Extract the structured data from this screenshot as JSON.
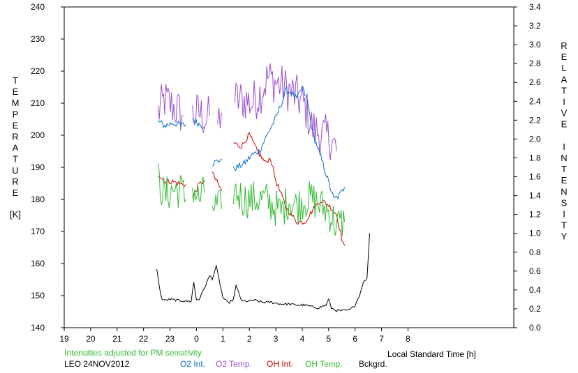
{
  "chart_data": {
    "type": "line",
    "ylabel_left": "TEMPERATURE",
    "ylabel_left_unit": "[K]",
    "ylabel_right": "RELATIVE INTENSITY",
    "xlabel": "Local Standard Time [h]",
    "note": "Intensities adjusted for PM sensitivity",
    "station": "LEO 24NOV2012",
    "x_hours_after_19": [
      0,
      17
    ],
    "x_tick_labels": [
      "19",
      "20",
      "21",
      "22",
      "23",
      "0",
      "1",
      "2",
      "3",
      "4",
      "5",
      "6",
      "7",
      "8"
    ],
    "ylim_left": [
      140,
      240
    ],
    "y_left_ticks": [
      "140",
      "150",
      "160",
      "170",
      "180",
      "190",
      "200",
      "210",
      "220",
      "230",
      "240"
    ],
    "ylim_right": [
      0.0,
      3.4
    ],
    "y_right_ticks": [
      "0.0",
      "0.2",
      "0.4",
      "0.6",
      "0.8",
      "1.0",
      "1.2",
      "1.4",
      "1.6",
      "1.8",
      "2.0",
      "2.2",
      "2.4",
      "2.6",
      "2.8",
      "3.0",
      "3.2",
      "3.4"
    ],
    "legend": [
      {
        "name": "O2 Int.",
        "color": "#0070d0"
      },
      {
        "name": "O2 Temp.",
        "color": "#9b4fd0"
      },
      {
        "name": "OH Int.",
        "color": "#d00000"
      },
      {
        "name": "OH Temp.",
        "color": "#33bb33"
      },
      {
        "name": "Bckgrd.",
        "color": "#000000"
      }
    ],
    "series": [
      {
        "name": "O2 Temp.",
        "axis": "left",
        "color": "#9b4fd0",
        "noise": 7,
        "segments": [
          [
            [
              3.55,
              207
            ],
            [
              3.8,
              211
            ],
            [
              4.1,
              209
            ],
            [
              4.4,
              207
            ],
            [
              4.5,
              206
            ]
          ],
          [
            [
              4.85,
              206
            ],
            [
              5.1,
              207
            ],
            [
              5.35,
              205
            ],
            [
              5.5,
              206
            ]
          ],
          [
            [
              5.8,
              204
            ],
            [
              5.95,
              207
            ]
          ],
          [
            [
              6.45,
              211
            ],
            [
              6.85,
              211
            ],
            [
              7.1,
              210
            ],
            [
              7.4,
              213
            ],
            [
              7.7,
              218
            ],
            [
              8.1,
              216
            ],
            [
              8.5,
              214
            ],
            [
              8.8,
              212
            ],
            [
              9.1,
              209
            ],
            [
              9.4,
              202
            ],
            [
              9.8,
              200
            ],
            [
              10.1,
              199
            ],
            [
              10.3,
              195
            ]
          ]
        ]
      },
      {
        "name": "O2 Int.",
        "axis": "right",
        "color": "#0070d0",
        "noise": 0.035,
        "segments": [
          [
            [
              3.55,
              2.19
            ],
            [
              3.8,
              2.14
            ],
            [
              4.1,
              2.17
            ],
            [
              4.4,
              2.15
            ],
            [
              4.6,
              2.15
            ]
          ],
          [
            [
              4.85,
              2.22
            ],
            [
              5.1,
              2.16
            ],
            [
              5.3,
              2.13
            ]
          ],
          [
            [
              5.6,
              1.74
            ],
            [
              5.95,
              1.79
            ]
          ],
          [
            [
              6.4,
              1.68
            ],
            [
              6.8,
              1.74
            ],
            [
              7.1,
              1.83
            ],
            [
              7.4,
              1.88
            ],
            [
              7.7,
              2.06
            ],
            [
              8.0,
              2.22
            ],
            [
              8.4,
              2.52
            ],
            [
              8.6,
              2.49
            ],
            [
              8.8,
              2.42
            ],
            [
              9.0,
              2.55
            ],
            [
              9.2,
              2.4
            ],
            [
              9.4,
              2.06
            ],
            [
              9.7,
              1.81
            ],
            [
              10.0,
              1.54
            ],
            [
              10.2,
              1.36
            ],
            [
              10.4,
              1.4
            ],
            [
              10.6,
              1.49
            ]
          ]
        ]
      },
      {
        "name": "OH Int.",
        "axis": "right",
        "color": "#d00000",
        "noise": 0.028,
        "segments": [
          [
            [
              3.55,
              1.63
            ],
            [
              3.8,
              1.55
            ],
            [
              4.1,
              1.55
            ],
            [
              4.4,
              1.52
            ],
            [
              4.6,
              1.52
            ]
          ],
          [
            [
              4.85,
              1.38
            ],
            [
              5.1,
              1.52
            ],
            [
              5.3,
              1.56
            ]
          ],
          [
            [
              5.6,
              1.64
            ],
            [
              5.95,
              1.45
            ]
          ],
          [
            [
              6.4,
              1.96
            ],
            [
              6.7,
              1.92
            ],
            [
              7.0,
              2.05
            ],
            [
              7.3,
              1.87
            ],
            [
              7.6,
              1.75
            ],
            [
              7.8,
              1.8
            ],
            [
              8.0,
              1.56
            ],
            [
              8.4,
              1.27
            ],
            [
              8.8,
              1.12
            ],
            [
              9.1,
              1.12
            ],
            [
              9.4,
              1.25
            ],
            [
              9.7,
              1.35
            ],
            [
              10.0,
              1.3
            ],
            [
              10.3,
              1.2
            ],
            [
              10.5,
              0.94
            ],
            [
              10.6,
              0.87
            ]
          ]
        ]
      },
      {
        "name": "OH Temp.",
        "axis": "left",
        "color": "#33bb33",
        "noise": 6,
        "segments": [
          [
            [
              3.55,
              186
            ],
            [
              3.8,
              181
            ],
            [
              4.1,
              183
            ],
            [
              4.4,
              183
            ],
            [
              4.6,
              180
            ]
          ],
          [
            [
              4.85,
              184
            ],
            [
              5.1,
              180
            ],
            [
              5.3,
              182
            ]
          ],
          [
            [
              5.6,
              178
            ],
            [
              5.95,
              177
            ]
          ],
          [
            [
              6.4,
              183
            ],
            [
              6.8,
              180
            ],
            [
              7.2,
              180
            ],
            [
              7.6,
              180
            ],
            [
              7.9,
              178
            ],
            [
              8.2,
              176
            ],
            [
              8.5,
              180
            ],
            [
              8.8,
              178
            ],
            [
              9.1,
              180
            ],
            [
              9.4,
              180
            ],
            [
              9.7,
              178
            ],
            [
              10.0,
              176
            ],
            [
              10.3,
              172
            ],
            [
              10.6,
              173
            ]
          ]
        ]
      },
      {
        "name": "Bckgrd.",
        "axis": "right",
        "color": "#000000",
        "noise": 0.012,
        "segments": [
          [
            [
              3.5,
              0.63
            ],
            [
              3.6,
              0.42
            ],
            [
              3.7,
              0.3
            ],
            [
              3.8,
              0.29
            ],
            [
              4.0,
              0.3
            ],
            [
              4.3,
              0.29
            ],
            [
              4.6,
              0.28
            ],
            [
              4.8,
              0.28
            ],
            [
              4.9,
              0.48
            ],
            [
              5.0,
              0.3
            ],
            [
              5.1,
              0.3
            ],
            [
              5.3,
              0.42
            ],
            [
              5.5,
              0.55
            ],
            [
              5.6,
              0.52
            ],
            [
              5.75,
              0.65
            ],
            [
              5.9,
              0.45
            ],
            [
              6.0,
              0.32
            ],
            [
              6.2,
              0.26
            ],
            [
              6.4,
              0.3
            ],
            [
              6.5,
              0.44
            ],
            [
              6.6,
              0.38
            ],
            [
              6.7,
              0.28
            ],
            [
              6.9,
              0.28
            ],
            [
              7.2,
              0.29
            ],
            [
              7.5,
              0.27
            ],
            [
              7.8,
              0.27
            ],
            [
              8.2,
              0.25
            ],
            [
              8.5,
              0.25
            ],
            [
              8.8,
              0.24
            ],
            [
              9.1,
              0.24
            ],
            [
              9.4,
              0.22
            ],
            [
              9.6,
              0.21
            ],
            [
              9.9,
              0.24
            ],
            [
              10.0,
              0.3
            ],
            [
              10.1,
              0.21
            ],
            [
              10.3,
              0.18
            ],
            [
              10.6,
              0.18
            ],
            [
              10.8,
              0.19
            ],
            [
              11.0,
              0.24
            ],
            [
              11.2,
              0.37
            ],
            [
              11.3,
              0.48
            ],
            [
              11.45,
              0.52
            ],
            [
              11.55,
              1.0
            ]
          ]
        ]
      }
    ]
  }
}
